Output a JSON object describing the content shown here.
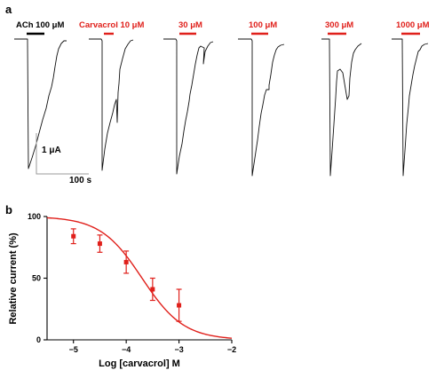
{
  "panel_a": {
    "label": "a",
    "applications": [
      {
        "text": "ACh 100 μM",
        "color": "#000000"
      },
      {
        "text": "Carvacrol 10 μM",
        "color": "#e0201b"
      },
      {
        "text": "30 μM",
        "color": "#e0201b"
      },
      {
        "text": "100 μM",
        "color": "#e0201b"
      },
      {
        "text": "300 μM",
        "color": "#e0201b"
      },
      {
        "text": "1000 μM",
        "color": "#e0201b"
      }
    ],
    "scale_bar": {
      "current": "1 μA",
      "time": "100 s"
    }
  },
  "panel_b": {
    "label": "b"
  },
  "chart_data": {
    "type": "scatter",
    "title": "",
    "xlabel": "Log [carvacrol] M",
    "ylabel": "Relative current (%)",
    "xlim": [
      -5.5,
      -2
    ],
    "ylim": [
      0,
      100
    ],
    "xticks": [
      -5,
      -4,
      -3,
      -2
    ],
    "xtick_labels": [
      "−5",
      "−4",
      "−3",
      "−2"
    ],
    "yticks": [
      0,
      50,
      100
    ],
    "ytick_labels": [
      "0",
      "50",
      "100"
    ],
    "grid": false,
    "series": [
      {
        "x": [
          -5,
          -4.5,
          -4,
          -3.5,
          -3
        ],
        "y": [
          84,
          78,
          63,
          41,
          28
        ],
        "error": [
          6,
          7,
          9,
          9,
          13
        ],
        "color": "#e0201b"
      }
    ],
    "fit_color": "#e0201b"
  }
}
